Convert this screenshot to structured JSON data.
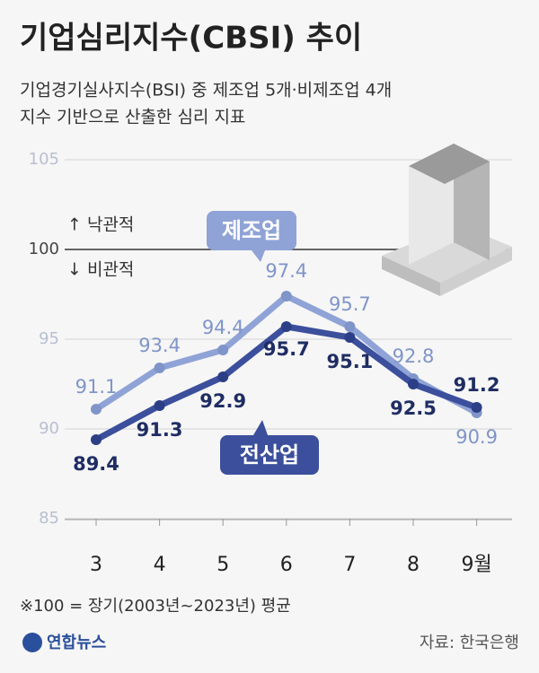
{
  "chart_data": {
    "type": "line",
    "title": "기업심리지수(CBSI) 추이",
    "subtitle": [
      "기업경기실사지수(BSI) 중 제조업 5개·비제조업 4개",
      "지수 기반으로 산출한 심리 지표"
    ],
    "categories": [
      "3",
      "4",
      "5",
      "6",
      "7",
      "8",
      "9월"
    ],
    "series": [
      {
        "name": "제조업",
        "color": "#8fa3d6",
        "values": [
          91.1,
          93.4,
          94.4,
          97.4,
          95.7,
          92.8,
          90.9
        ]
      },
      {
        "name": "전산업",
        "color": "#3b4f9c",
        "values": [
          89.4,
          91.3,
          92.9,
          95.7,
          95.1,
          92.5,
          91.2
        ]
      }
    ],
    "ylim": [
      85,
      105
    ],
    "yticks": [
      85,
      90,
      95,
      100,
      105
    ],
    "grid": true,
    "reference_line": 100,
    "annotations": [
      "↑ 낙관적",
      "↓ 비관적",
      "※100 = 장기(2003년~2023년) 평균"
    ],
    "logo": "연합뉴스",
    "source": "자료: 한국은행"
  }
}
